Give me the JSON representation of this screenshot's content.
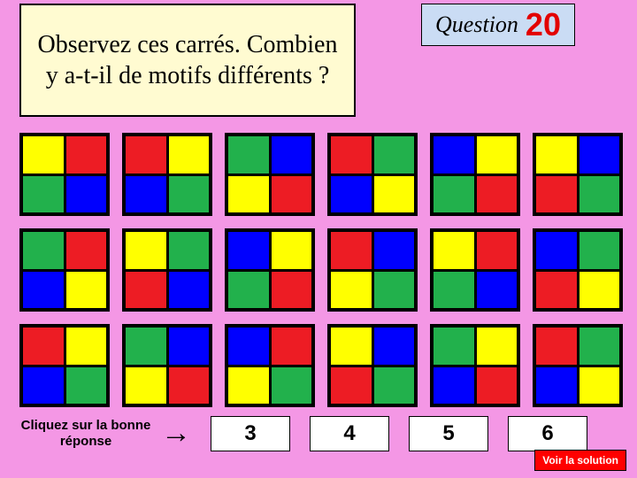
{
  "prompt": "Observez ces carrés. Combien y a-t-il de motifs différents  ?",
  "question_label": "Question",
  "question_number": "20",
  "help_text": "Cliquez sur la bonne réponse",
  "arrow_glyph": "→",
  "solution_label": "Voir la solution",
  "colors": {
    "red": "#ed1c24",
    "green": "#22b14c",
    "blue": "#0000fe",
    "yellow": "#ffff00"
  },
  "tiles": [
    [
      "yellow",
      "red",
      "green",
      "blue"
    ],
    [
      "red",
      "yellow",
      "blue",
      "green"
    ],
    [
      "green",
      "blue",
      "yellow",
      "red"
    ],
    [
      "red",
      "green",
      "blue",
      "yellow"
    ],
    [
      "blue",
      "yellow",
      "green",
      "red"
    ],
    [
      "yellow",
      "blue",
      "red",
      "green"
    ],
    [
      "green",
      "red",
      "blue",
      "yellow"
    ],
    [
      "yellow",
      "green",
      "red",
      "blue"
    ],
    [
      "blue",
      "yellow",
      "green",
      "red"
    ],
    [
      "red",
      "blue",
      "yellow",
      "green"
    ],
    [
      "yellow",
      "red",
      "green",
      "blue"
    ],
    [
      "blue",
      "green",
      "red",
      "yellow"
    ],
    [
      "red",
      "yellow",
      "blue",
      "green"
    ],
    [
      "green",
      "blue",
      "yellow",
      "red"
    ],
    [
      "blue",
      "red",
      "yellow",
      "green"
    ],
    [
      "yellow",
      "blue",
      "red",
      "green"
    ],
    [
      "green",
      "yellow",
      "blue",
      "red"
    ],
    [
      "red",
      "green",
      "blue",
      "yellow"
    ]
  ],
  "answers": [
    "3",
    "4",
    "5",
    "6"
  ]
}
